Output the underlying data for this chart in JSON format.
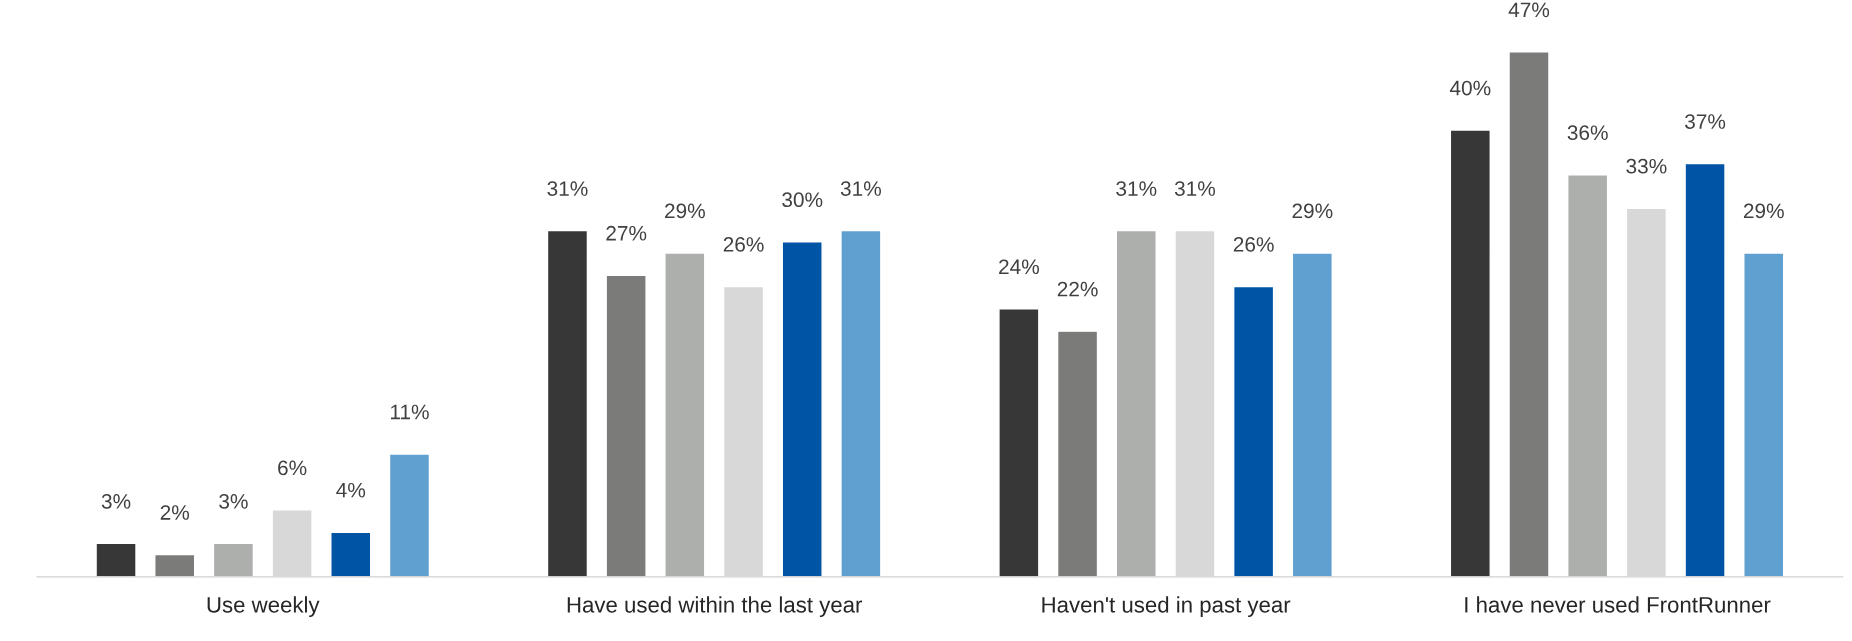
{
  "chart_data": {
    "type": "bar",
    "categories": [
      "Use weekly",
      "Have used within the last year",
      "Haven't used in past year",
      "I have never used FrontRunner"
    ],
    "series": [
      {
        "color": "#373737",
        "values": [
          3,
          31,
          24,
          40
        ],
        "value_labels": [
          "3%",
          "31%",
          "24%",
          "40%"
        ]
      },
      {
        "color": "#7b7c7a",
        "values": [
          2,
          27,
          22,
          47
        ],
        "value_labels": [
          "2%",
          "27%",
          "22%",
          "47%"
        ]
      },
      {
        "color": "#adafad",
        "values": [
          3,
          29,
          31,
          36
        ],
        "value_labels": [
          "3%",
          "29%",
          "31%",
          "36%"
        ]
      },
      {
        "color": "#d8d8d8",
        "values": [
          6,
          26,
          31,
          33
        ],
        "value_labels": [
          "6%",
          "26%",
          "31%",
          "33%"
        ]
      },
      {
        "color": "#0054a6",
        "values": [
          4,
          30,
          26,
          37
        ],
        "value_labels": [
          "4%",
          "30%",
          "26%",
          "37%"
        ]
      },
      {
        "color": "#60a0d0",
        "values": [
          11,
          31,
          29,
          29
        ],
        "value_labels": [
          "11%",
          "31%",
          "29%",
          "29%"
        ]
      }
    ],
    "tick_labels": "x"
  }
}
